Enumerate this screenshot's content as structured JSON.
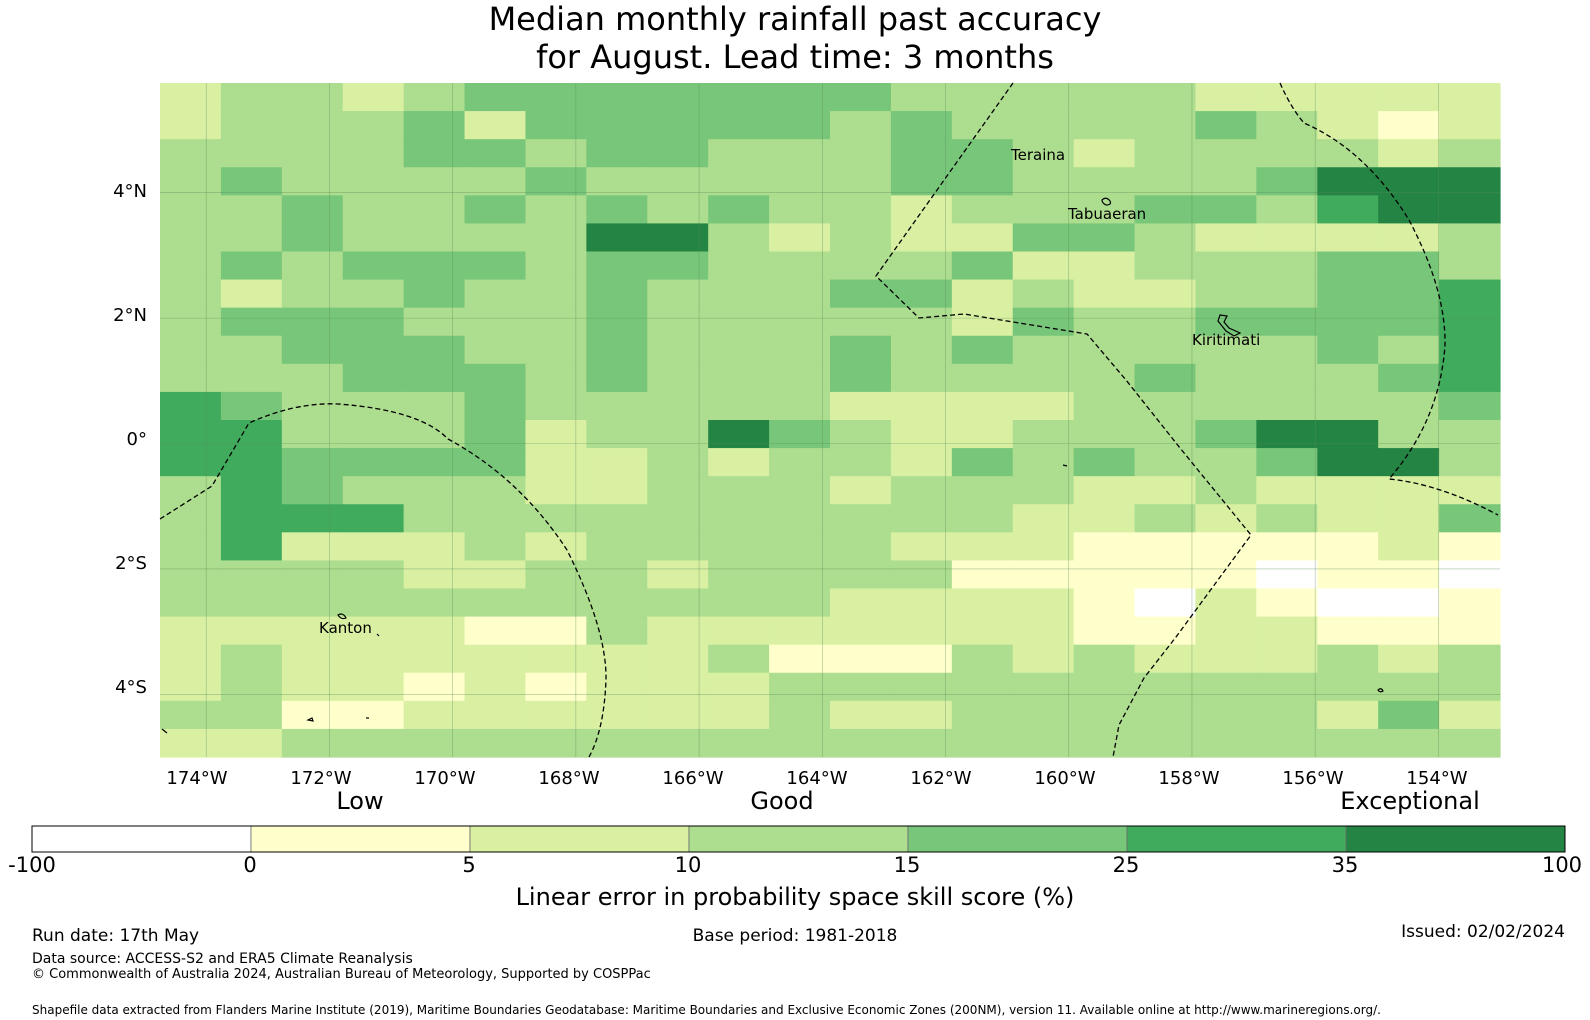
{
  "title_line1": "Median monthly rainfall past accuracy",
  "title_line2": "for August. Lead time: 3 months",
  "map": {
    "lon_range": [
      -174.75,
      -153.0
    ],
    "lat_range": [
      -5.0,
      5.75
    ],
    "lat_ticks": [
      "4°N",
      "2°N",
      "0°",
      "2°S",
      "4°S"
    ],
    "lon_ticks": [
      "174°W",
      "172°W",
      "170°W",
      "168°W",
      "166°W",
      "164°W",
      "162°W",
      "160°W",
      "158°W",
      "156°W",
      "154°W"
    ],
    "place_labels": [
      "Teraina",
      "Tabuaeran",
      "Kiritimati",
      "Kanton"
    ],
    "grid_rows_north_to_south": [
      "2332344444443333322222",
      "2333424444434333343212",
      "3333443443334432333323",
      "3433334333334433334666",
      "3343343434332333443566",
      "3343333663232244322223",
      "3434443443333422333443",
      "3233433433344232233445",
      "3444333433333243344445",
      "3344433433343433333435",
      "3334443433343333433345",
      "5433343333322223333334",
      "5533342336432233346633",
      "5544442232332434334663",
      "3543332233323332232222",
      "3555333333333322323224",
      "3522232333332221111121",
      "3333223323333111110110",
      "3333333333322221021001",
      "2222211322222221122111",
      "2322222223111323222323",
      "2322121222333333333333",
      "3311222222322333333242",
      "2233333333333333333333"
    ],
    "colors": {
      "0": "#ffffff",
      "1": "#ffffcc",
      "2": "#d9f0a3",
      "3": "#addd8e",
      "4": "#78c679",
      "5": "#41ab5d",
      "6": "#238443"
    }
  },
  "category_labels": {
    "low": "Low",
    "good": "Good",
    "exceptional": "Exceptional"
  },
  "colorbar": {
    "bins": [
      "-100",
      "0",
      "5",
      "10",
      "15",
      "25",
      "35",
      "100"
    ],
    "colors": [
      "#ffffff",
      "#ffffcc",
      "#d9f0a3",
      "#addd8e",
      "#78c679",
      "#41ab5d",
      "#238443"
    ],
    "title": "Linear error in probability space skill score (%)"
  },
  "footer": {
    "run_date": "Run date: 17th May",
    "base_period": "Base period: 1981-2018",
    "issued": "Issued: 02/02/2024",
    "data_source": "Data source: ACCESS-S2 and ERA5 Climate Reanalysis",
    "copyright": "© Commonwealth of Australia 2024, Australian Bureau of Meteorology, Supported by COSPPac",
    "shapefile": "Shapefile data extracted from Flanders Marine Institute (2019), Maritime Boundaries Geodatabase: Maritime Boundaries and Exclusive Economic Zones (200NM), version 11. Available online at http://www.marineregions.org/."
  }
}
